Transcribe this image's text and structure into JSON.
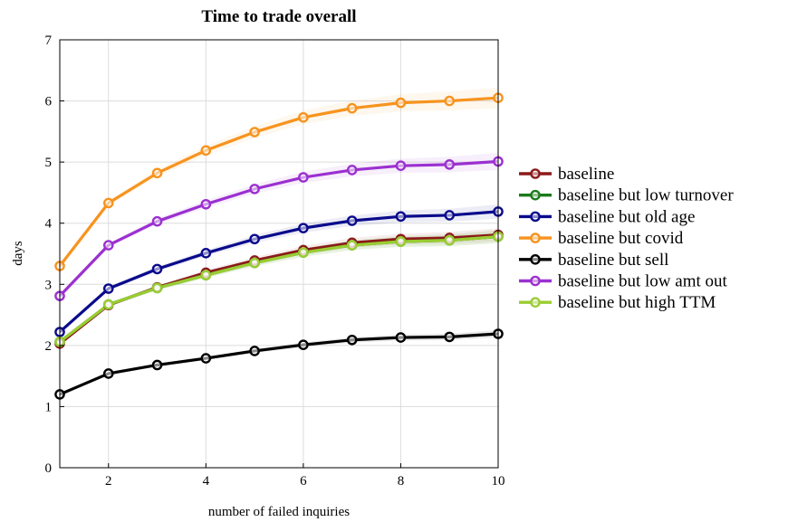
{
  "chart_data": {
    "type": "line",
    "title": "Time to trade overall",
    "xlabel": "number of failed inquiries",
    "ylabel": "days",
    "xlim": [
      1,
      10
    ],
    "ylim": [
      0,
      7
    ],
    "x_ticks": [
      2,
      4,
      6,
      8,
      10
    ],
    "y_ticks": [
      0,
      1,
      2,
      3,
      4,
      5,
      6,
      7
    ],
    "grid": true,
    "legend_position": "right",
    "x": [
      1,
      2,
      3,
      4,
      5,
      6,
      7,
      8,
      9,
      10
    ],
    "series": [
      {
        "name": "baseline",
        "color": "#8b1a1a",
        "values": [
          2.03,
          2.66,
          2.95,
          3.19,
          3.39,
          3.56,
          3.68,
          3.74,
          3.76,
          3.81
        ]
      },
      {
        "name": "baseline but low turnover",
        "color": "#1a7a1a",
        "values": [
          2.06,
          2.67,
          2.94,
          3.15,
          3.35,
          3.52,
          3.64,
          3.7,
          3.72,
          3.78
        ]
      },
      {
        "name": "baseline but old age",
        "color": "#0a0a8c",
        "values": [
          2.22,
          2.93,
          3.25,
          3.51,
          3.74,
          3.92,
          4.04,
          4.11,
          4.13,
          4.19
        ]
      },
      {
        "name": "baseline but covid",
        "color": "#f7931e",
        "values": [
          3.3,
          4.33,
          4.82,
          5.19,
          5.49,
          5.73,
          5.88,
          5.97,
          6.0,
          6.05
        ]
      },
      {
        "name": "baseline but sell",
        "color": "#000000",
        "values": [
          1.2,
          1.54,
          1.68,
          1.79,
          1.91,
          2.01,
          2.09,
          2.13,
          2.14,
          2.19
        ]
      },
      {
        "name": "baseline but low amt out",
        "color": "#9b30d0",
        "values": [
          2.81,
          3.64,
          4.03,
          4.31,
          4.56,
          4.75,
          4.87,
          4.94,
          4.96,
          5.01
        ]
      },
      {
        "name": "baseline but high TTM",
        "color": "#9acd32",
        "values": [
          2.06,
          2.67,
          2.94,
          3.15,
          3.35,
          3.52,
          3.64,
          3.7,
          3.72,
          3.78
        ]
      }
    ]
  }
}
